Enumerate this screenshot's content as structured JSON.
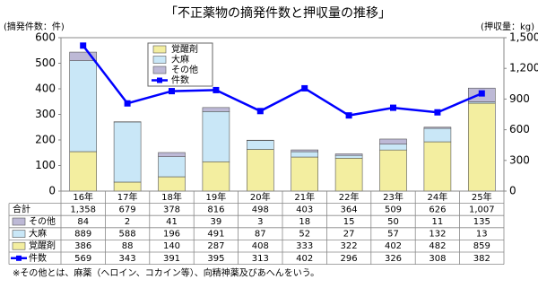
{
  "chart_data": {
    "type": "bar",
    "title": "「不正薬物の摘発件数と押収量の推移」",
    "y_label": "(摘発件数：件)",
    "y2_label": "(押収量：kg)",
    "categories": [
      "16年",
      "17年",
      "18年",
      "19年",
      "20年",
      "21年",
      "22年",
      "23年",
      "24年",
      "25年"
    ],
    "ylim": [
      0,
      600
    ],
    "yticks": [
      0,
      100,
      200,
      300,
      400,
      500,
      600
    ],
    "y2lim": [
      0,
      1500
    ],
    "y2ticks": [
      0,
      300,
      600,
      900,
      {
        "value": 1200,
        "label": "1,200"
      },
      {
        "value": 1500,
        "label": "1,500"
      }
    ],
    "series": [
      {
        "name": "覚醒剤",
        "type": "bar",
        "axis": "y2",
        "color": "#f3eea0",
        "values": [
          386,
          88,
          140,
          287,
          408,
          333,
          322,
          402,
          482,
          859
        ]
      },
      {
        "name": "大麻",
        "type": "bar",
        "axis": "y2",
        "color": "#c9e7f7",
        "values": [
          889,
          588,
          196,
          491,
          87,
          52,
          27,
          57,
          132,
          13
        ]
      },
      {
        "name": "その他",
        "type": "bar",
        "axis": "y2",
        "color": "#bdb9d6",
        "values": [
          84,
          2,
          41,
          39,
          3,
          18,
          15,
          50,
          11,
          135
        ]
      },
      {
        "name": "件数",
        "type": "line",
        "color": "#0000ff",
        "values": [
          569,
          343,
          391,
          395,
          313,
          402,
          296,
          326,
          308,
          382
        ]
      }
    ],
    "totals": {
      "name": "合計",
      "values": [
        1358,
        679,
        378,
        816,
        498,
        403,
        364,
        509,
        626,
        1007
      ],
      "value_labels": [
        "1,358",
        "679",
        "378",
        "816",
        "498",
        "403",
        "364",
        "509",
        "626",
        "1,007"
      ]
    },
    "legend": "upper left",
    "note": "※その他とは、麻薬（ヘロイン、コカイン等）、向精神薬及びあへんをいう。"
  }
}
